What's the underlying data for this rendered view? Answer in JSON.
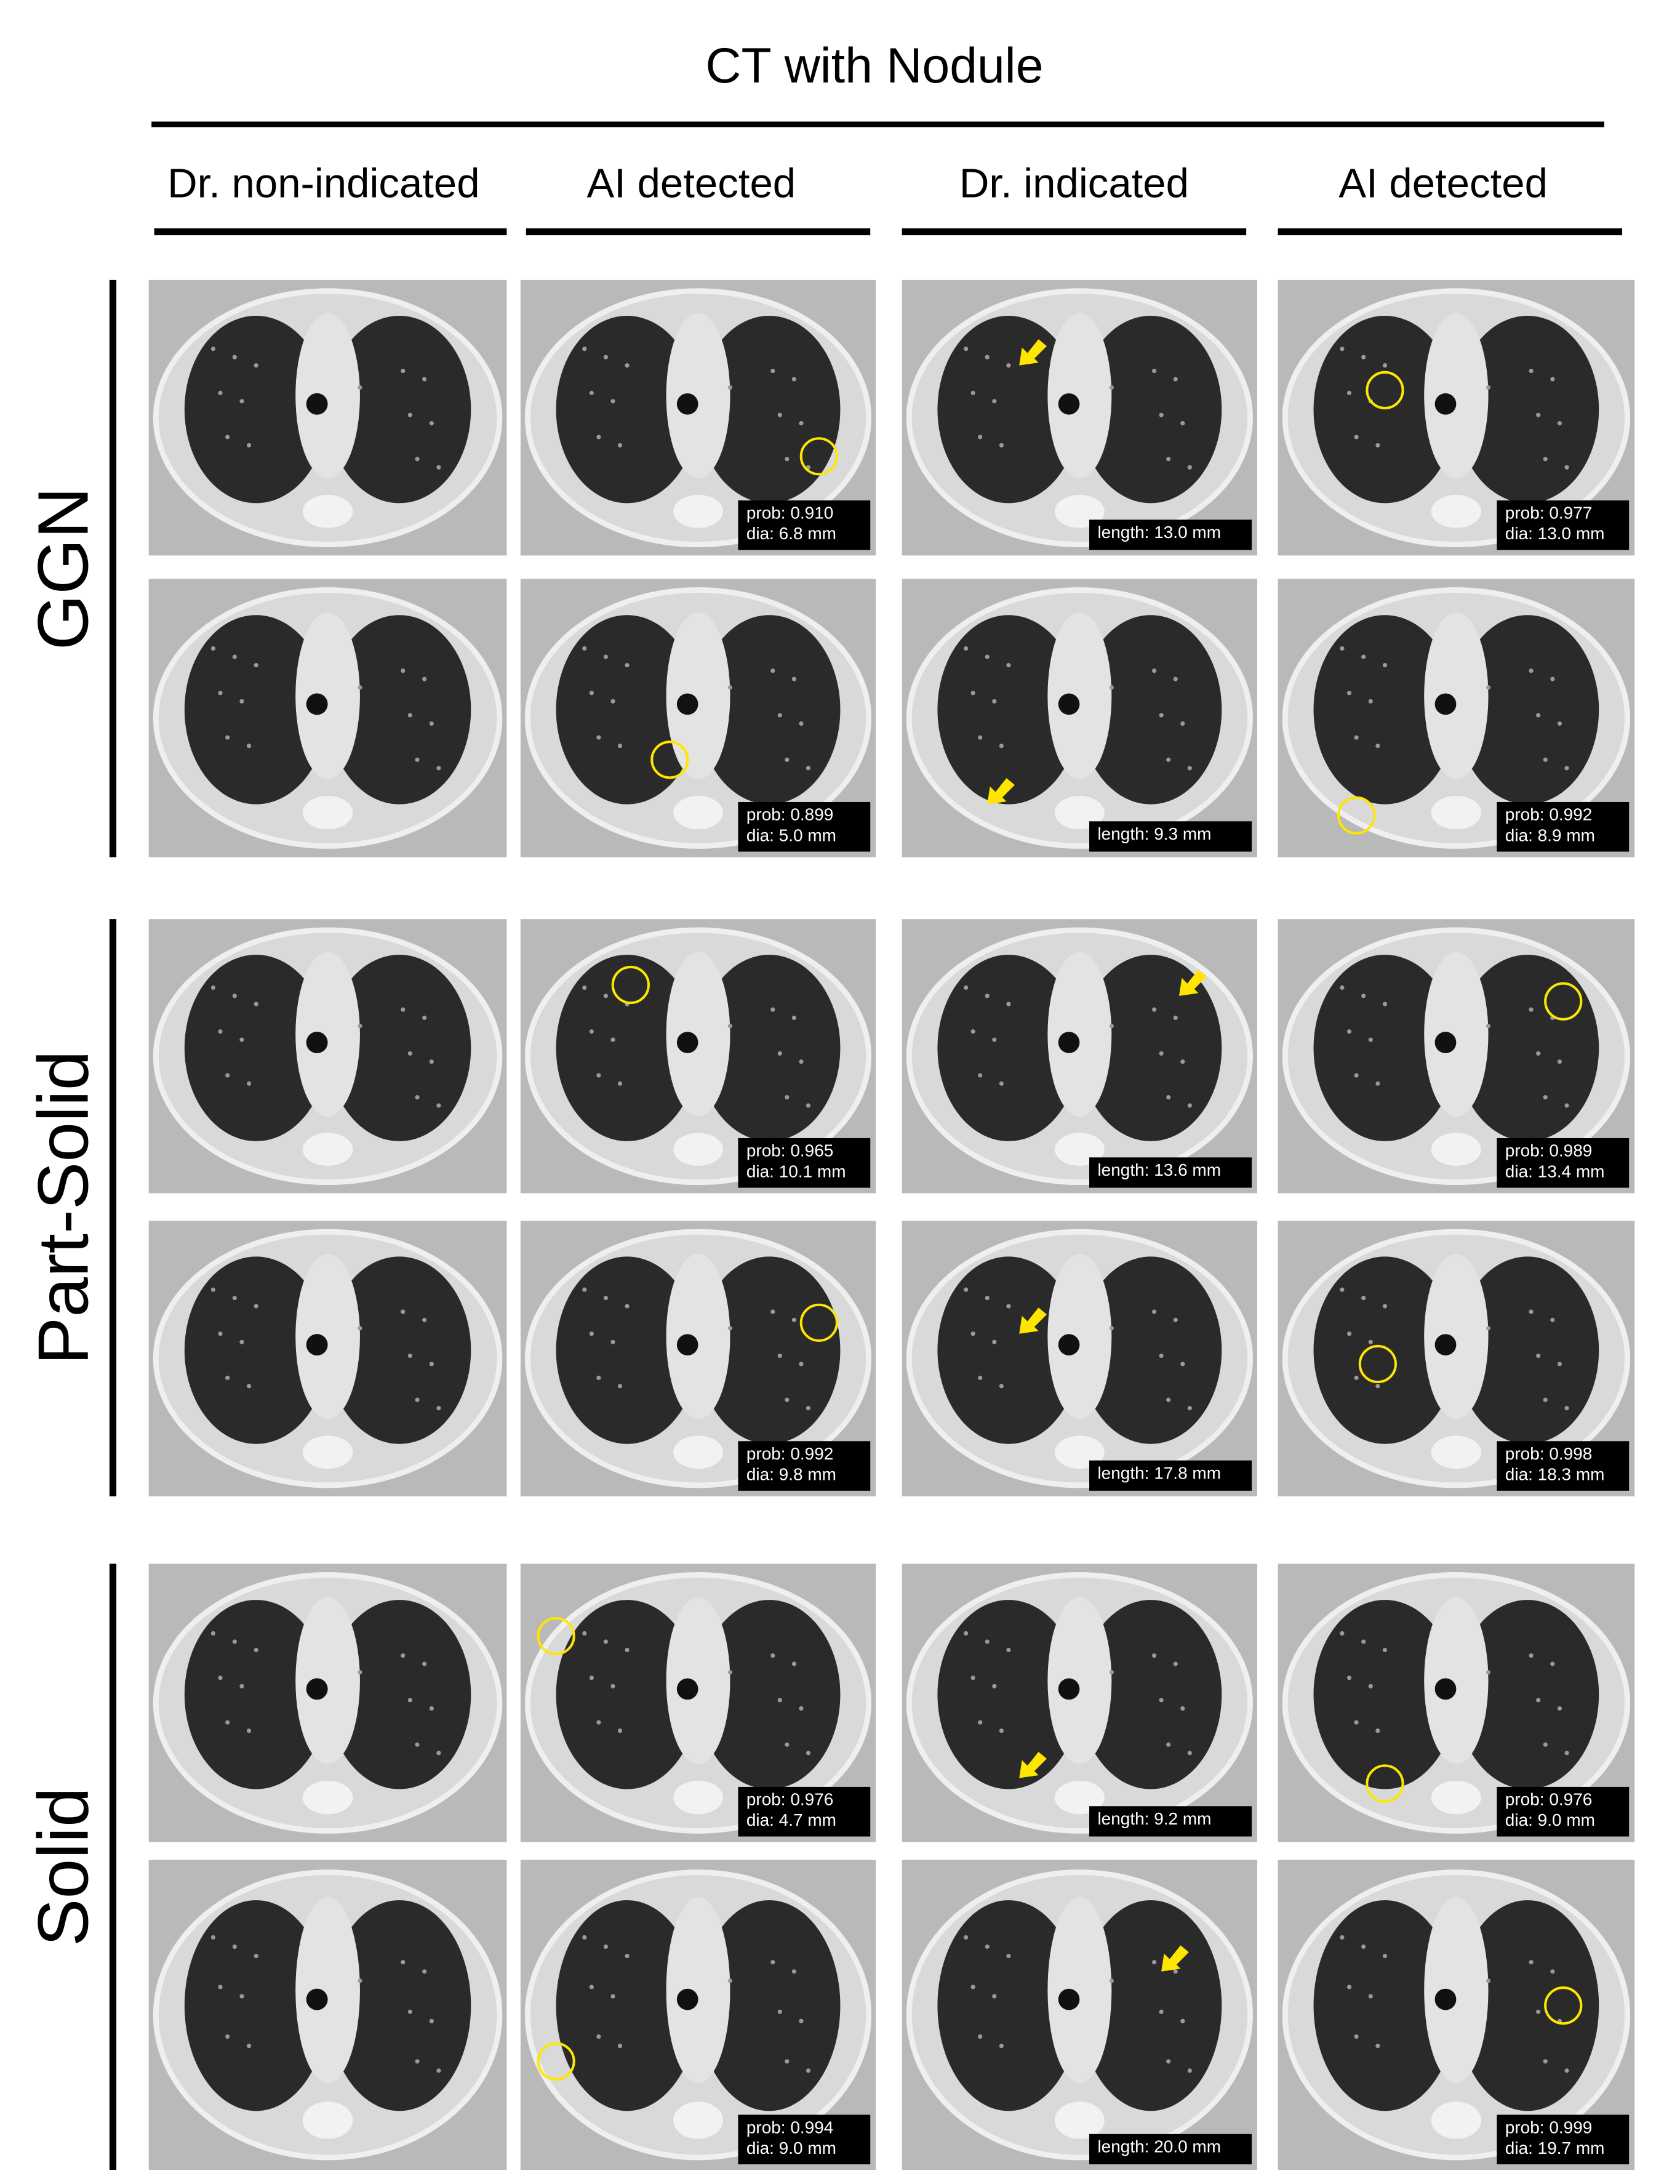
{
  "title": "CT with Nodule",
  "columns": [
    "Dr. non-indicated",
    "AI detected",
    "Dr. indicated",
    "AI detected"
  ],
  "groups": [
    {
      "label": "GGN",
      "rows": [
        {
          "ai_left": [
            "prob: 0.910",
            "dia: 6.8  mm"
          ],
          "dr": "length: 13.0 mm",
          "ai_right": [
            "prob: 0.977",
            "dia: 13.0 mm"
          ]
        },
        {
          "ai_left": [
            "prob: 0.899",
            "dia: 5.0 mm"
          ],
          "dr": "length: 9.3 mm",
          "ai_right": [
            "prob: 0.992",
            "dia: 8.9 mm"
          ]
        }
      ]
    },
    {
      "label": "Part-Solid",
      "rows": [
        {
          "ai_left": [
            "prob: 0.965",
            "dia: 10.1 mm"
          ],
          "dr": "length: 13.6 mm",
          "ai_right": [
            "prob: 0.989",
            "dia: 13.4 mm"
          ]
        },
        {
          "ai_left": [
            "prob: 0.992",
            "dia: 9.8 mm"
          ],
          "dr": "length: 17.8 mm",
          "ai_right": [
            "prob: 0.998",
            "dia: 18.3 mm"
          ]
        }
      ]
    },
    {
      "label": "Solid",
      "rows": [
        {
          "ai_left": [
            "prob: 0.976",
            "dia: 4.7 mm"
          ],
          "dr": "length: 9.2 mm",
          "ai_right": [
            "prob: 0.976",
            "dia: 9.0 mm"
          ]
        },
        {
          "ai_left": [
            "prob: 0.994",
            "dia: 9.0 mm"
          ],
          "dr": "length: 20.0 mm",
          "ai_right": [
            "prob: 0.999",
            "dia: 19.7  mm"
          ]
        }
      ]
    }
  ]
}
